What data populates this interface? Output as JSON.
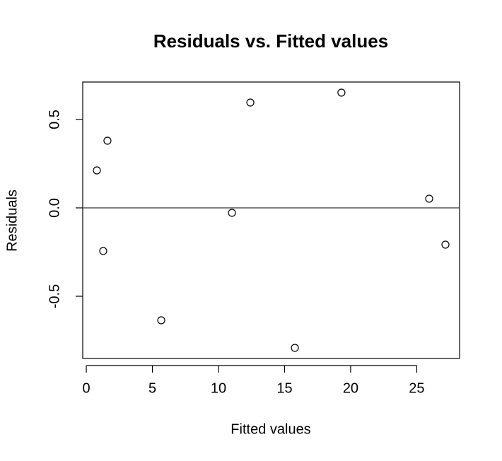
{
  "chart_data": {
    "type": "scatter",
    "title": "Residuals vs. Fitted values",
    "x_label": "Fitted values",
    "y_label": "Residuals",
    "x": [
      0.8,
      1.6,
      1.28,
      5.67,
      11.02,
      12.41,
      15.78,
      19.3,
      25.94,
      27.17
    ],
    "values": [
      0.212,
      0.38,
      -0.244,
      -0.636,
      -0.028,
      0.596,
      -0.792,
      0.652,
      0.052,
      -0.208
    ],
    "color": "#000000",
    "xlim": [
      -0.27,
      28.24
    ],
    "ylim": [
      -0.852,
      0.712
    ],
    "xticks": [
      0,
      5,
      10,
      15,
      20,
      25
    ],
    "yticks": [
      -0.5,
      {
        "value": 0,
        "label": "0.0"
      },
      0.5
    ],
    "hline": 0
  }
}
